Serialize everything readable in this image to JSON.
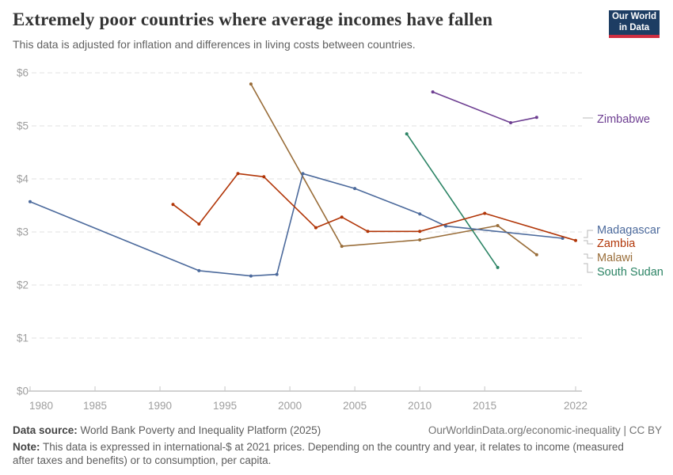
{
  "header": {
    "title": "Extremely poor countries where average incomes have fallen",
    "subtitle": "This data is adjusted for inflation and differences in living costs between countries.",
    "logo_line1": "Our World",
    "logo_line2": "in Data"
  },
  "chart_data": {
    "type": "line",
    "title": "Extremely poor countries where average incomes have fallen",
    "xlabel": "",
    "ylabel": "",
    "unit": "international-$ at 2021 prices",
    "xlim": [
      1980,
      2022
    ],
    "ylim": [
      0,
      6
    ],
    "xticks": [
      1980,
      1985,
      1990,
      1995,
      2000,
      2005,
      2010,
      2015,
      2022
    ],
    "yticks": [
      0,
      1,
      2,
      3,
      4,
      5,
      6
    ],
    "ytick_labels": [
      "$0",
      "$1",
      "$2",
      "$3",
      "$4",
      "$5",
      "$6"
    ],
    "grid": "horizontal-dashed",
    "legend_position": "right",
    "series": [
      {
        "name": "Malawi",
        "color": "#996D39",
        "points": [
          [
            1997,
            5.79
          ],
          [
            2004,
            2.73
          ],
          [
            2010,
            2.85
          ],
          [
            2016,
            3.12
          ],
          [
            2019,
            2.57
          ]
        ]
      },
      {
        "name": "South Sudan",
        "color": "#2C8465",
        "points": [
          [
            2009,
            4.85
          ],
          [
            2016,
            2.33
          ]
        ]
      },
      {
        "name": "Madagascar",
        "color": "#4C6A9C",
        "points": [
          [
            1980,
            3.57
          ],
          [
            1993,
            2.27
          ],
          [
            1997,
            2.17
          ],
          [
            1999,
            2.2
          ],
          [
            2001,
            4.1
          ],
          [
            2005,
            3.82
          ],
          [
            2010,
            3.34
          ],
          [
            2012,
            3.11
          ],
          [
            2021,
            2.88
          ]
        ]
      },
      {
        "name": "Zambia",
        "color": "#B13507",
        "points": [
          [
            1991,
            3.52
          ],
          [
            1993,
            3.15
          ],
          [
            1996,
            4.1
          ],
          [
            1998,
            4.04
          ],
          [
            2002,
            3.08
          ],
          [
            2004,
            3.28
          ],
          [
            2006,
            3.01
          ],
          [
            2010,
            3.01
          ],
          [
            2015,
            3.35
          ],
          [
            2022,
            2.84
          ]
        ]
      },
      {
        "name": "Zimbabwe",
        "color": "#6D3E91",
        "points": [
          [
            2011,
            5.64
          ],
          [
            2017,
            5.06
          ],
          [
            2019,
            5.16
          ]
        ]
      }
    ]
  },
  "footer": {
    "source_label": "Data source:",
    "source_text": " World Bank Poverty and Inequality Platform (2025)",
    "link_text": "OurWorldinData.org/economic-inequality | CC BY",
    "note_label": "Note:",
    "note_text": " This data is expressed in international-$ at 2021 prices. Depending on the country and year, it relates to income (measured after taxes and benefits) or to consumption, per capita."
  },
  "colors": {
    "logo_bg": "#1d3d63",
    "logo_bar": "#cf2e41",
    "gridline": "#e2e2e2",
    "axis": "#a5a5a5",
    "tick_label": "#9e9e9e"
  }
}
